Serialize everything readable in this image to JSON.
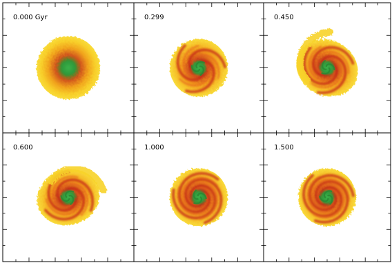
{
  "figure": {
    "panels": [
      {
        "label": "0.000 Gyr",
        "morphology": "smooth-disk"
      },
      {
        "label": "0.299",
        "morphology": "emerging-spiral"
      },
      {
        "label": "0.450",
        "morphology": "open-spiral"
      },
      {
        "label": "0.600",
        "morphology": "open-spiral"
      },
      {
        "label": "1.000",
        "morphology": "wound-spiral"
      },
      {
        "label": "1.500",
        "morphology": "wound-spiral"
      }
    ],
    "colors": {
      "outer_disk": "#f8d32a",
      "mid_disk": "#f49a1a",
      "arm": "#c62a12",
      "core": "#2e9a3c",
      "frame": "#000000",
      "background": "#ffffff"
    }
  }
}
